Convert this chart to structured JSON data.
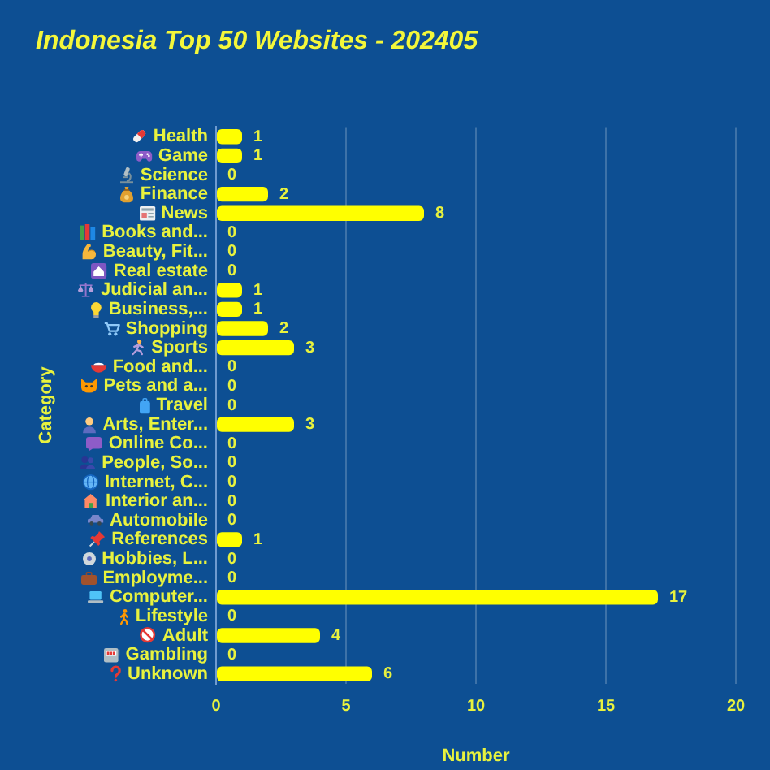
{
  "chart_data": {
    "type": "bar",
    "title": "Indonesia Top 50 Websites - 202405",
    "xlabel": "Number",
    "ylabel": "Category",
    "orientation": "horizontal",
    "categories": [
      "Health",
      "Game",
      "Science",
      "Finance",
      "News",
      "Books and...",
      "Beauty, Fit...",
      "Real estate",
      "Judicial an...",
      "Business,...",
      "Shopping",
      "Sports",
      "Food and...",
      "Pets and a...",
      "Travel",
      "Arts, Enter...",
      "Online Co...",
      "People, So...",
      "Internet, C...",
      "Interior an...",
      "Automobile",
      "References",
      "Hobbies, L...",
      "Employme...",
      "Computer...",
      "Lifestyle",
      "Adult",
      "Gambling",
      "Unknown"
    ],
    "values": [
      1,
      1,
      0,
      2,
      8,
      0,
      0,
      0,
      1,
      1,
      2,
      3,
      0,
      0,
      0,
      3,
      0,
      0,
      0,
      0,
      0,
      1,
      0,
      0,
      17,
      0,
      4,
      0,
      6
    ],
    "color": "#ffff00",
    "xlim": [
      0,
      20
    ],
    "xticks": [
      0,
      5,
      10,
      15,
      20
    ],
    "grid": "x",
    "data_labels": true
  }
}
